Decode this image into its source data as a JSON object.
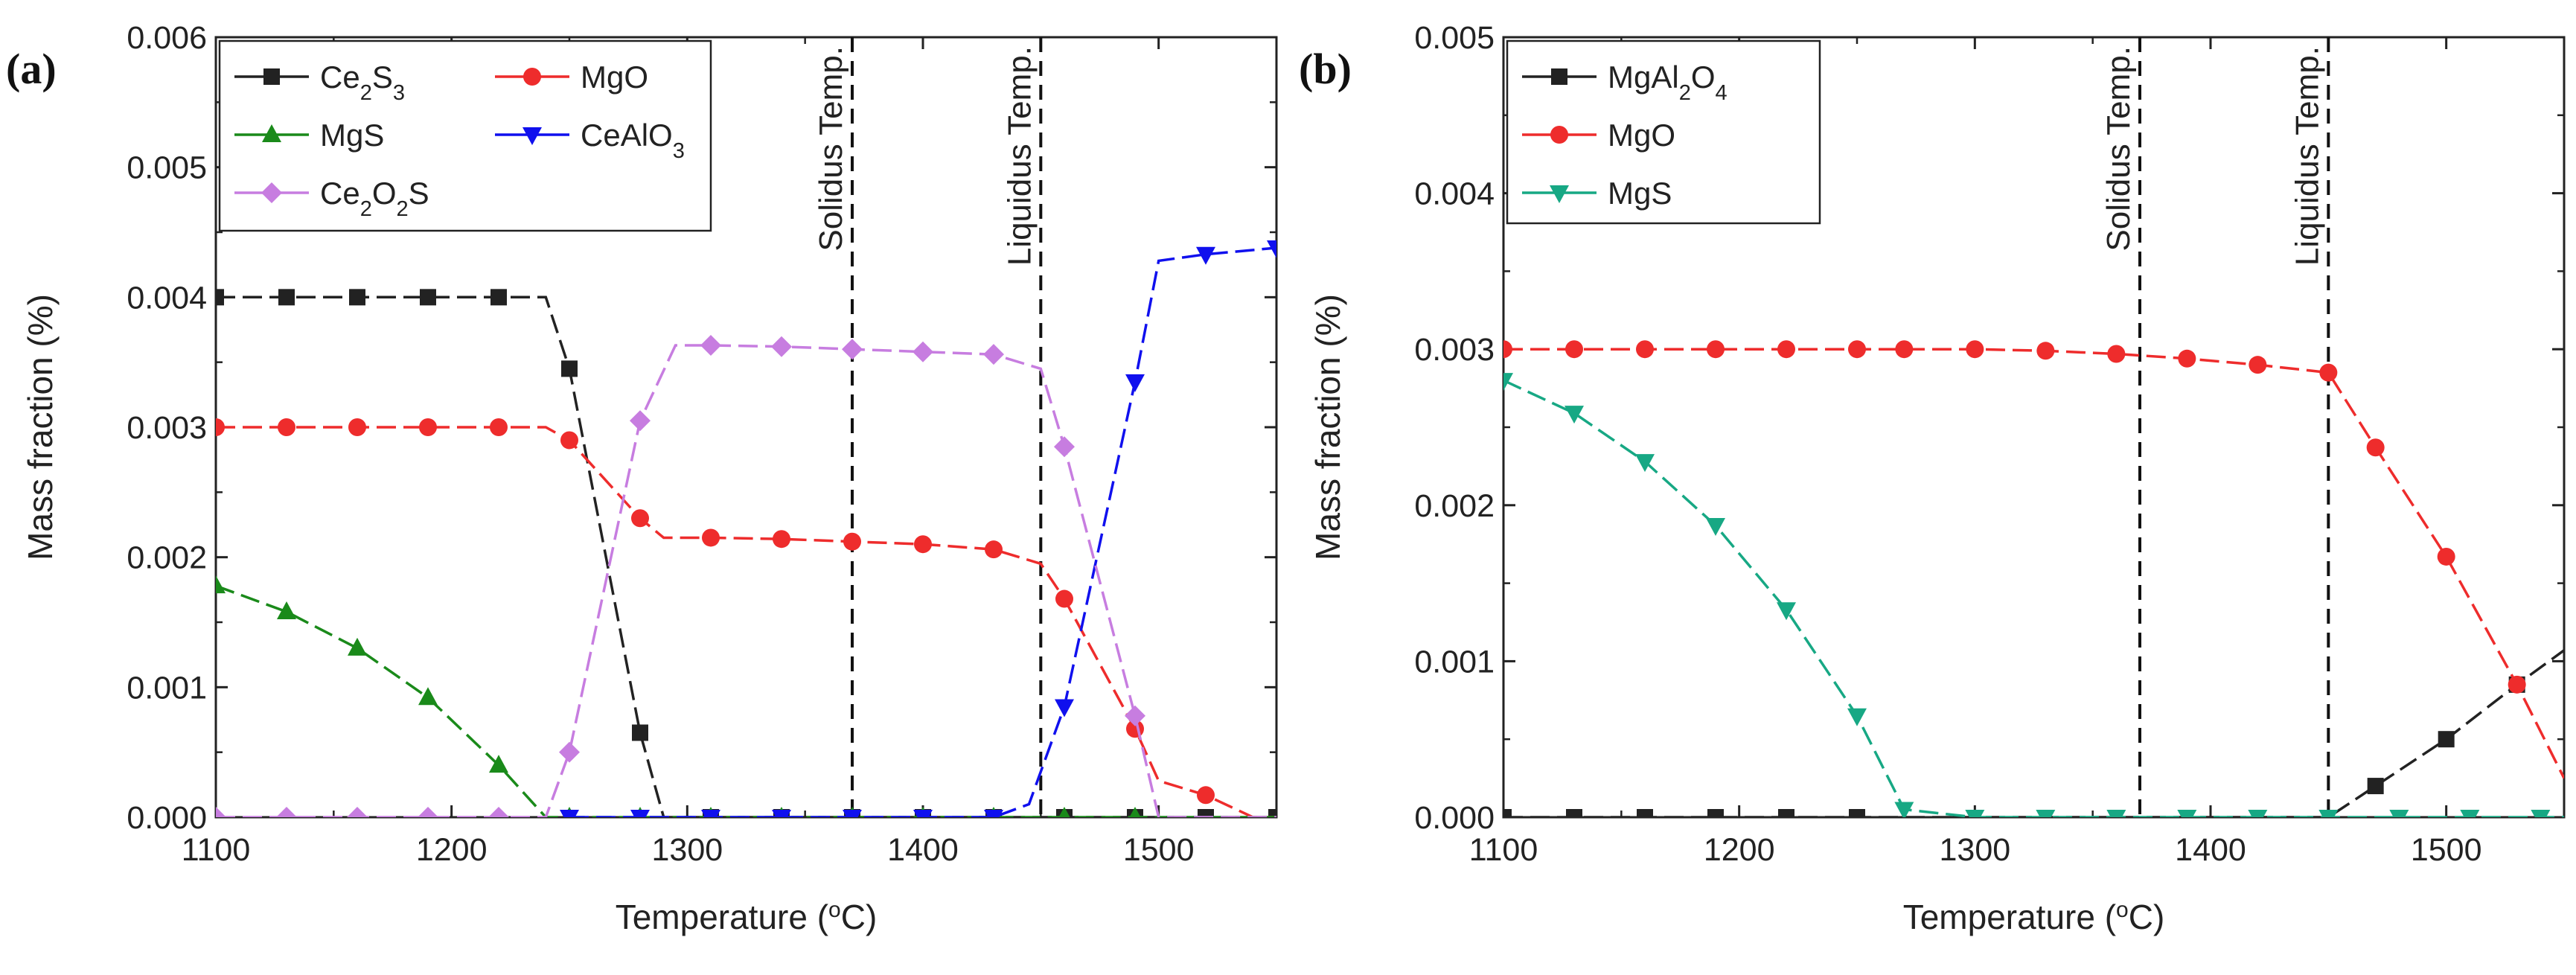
{
  "figure": {
    "panels": [
      {
        "label": "(a)",
        "xlabel_prefix": "Temperature (",
        "xlabel_sup": "o",
        "xlabel_suffix": "C)",
        "ylabel": "Mass fraction (%)",
        "yticks": [
          "0.000",
          "0.001",
          "0.002",
          "0.003",
          "0.004",
          "0.005",
          "0.006"
        ],
        "xticks": [
          "1100",
          "1200",
          "1300",
          "1400",
          "1500"
        ],
        "markers": [
          {
            "name": "Solidus Temp.",
            "value": 1370
          },
          {
            "name": "Liquidus Temp.",
            "value": 1450
          }
        ],
        "legend": [
          {
            "base": "Ce",
            "sub1": "2",
            "mid": "S",
            "sub2": "3",
            "tail": "",
            "color": "#222222",
            "marker": "square"
          },
          {
            "base": "MgO",
            "sub1": "",
            "mid": "",
            "sub2": "",
            "tail": "",
            "color": "#ee2c2c",
            "marker": "circle"
          },
          {
            "base": "MgS",
            "sub1": "",
            "mid": "",
            "sub2": "",
            "tail": "",
            "color": "#1a8a1a",
            "marker": "triangle-up"
          },
          {
            "base": "CeAlO",
            "sub1": "3",
            "mid": "",
            "sub2": "",
            "tail": "",
            "color": "#1010ee",
            "marker": "triangle-down"
          },
          {
            "base": "Ce",
            "sub1": "2",
            "mid": "O",
            "sub2": "2",
            "tail": "S",
            "color": "#c77de0",
            "marker": "diamond"
          }
        ]
      },
      {
        "label": "(b)",
        "xlabel_prefix": "Temperature (",
        "xlabel_sup": "o",
        "xlabel_suffix": "C)",
        "ylabel": "Mass fraction (%)",
        "yticks": [
          "0.000",
          "0.001",
          "0.002",
          "0.003",
          "0.004",
          "0.005"
        ],
        "xticks": [
          "1100",
          "1200",
          "1300",
          "1400",
          "1500"
        ],
        "markers": [
          {
            "name": "Solidus Temp.",
            "value": 1370
          },
          {
            "name": "Liquidus Temp.",
            "value": 1450
          }
        ],
        "legend": [
          {
            "base": "MgAl",
            "sub1": "2",
            "mid": "O",
            "sub2": "4",
            "tail": "",
            "color": "#222222",
            "marker": "square"
          },
          {
            "base": "MgO",
            "sub1": "",
            "mid": "",
            "sub2": "",
            "tail": "",
            "color": "#ee2c2c",
            "marker": "circle"
          },
          {
            "base": "MgS",
            "sub1": "",
            "mid": "",
            "sub2": "",
            "tail": "",
            "color": "#17a884",
            "marker": "triangle-down"
          }
        ]
      }
    ]
  },
  "chart_data": [
    {
      "type": "line",
      "title": "(a)",
      "xlabel": "Temperature (oC)",
      "ylabel": "Mass fraction (%)",
      "xlim": [
        1100,
        1550
      ],
      "ylim": [
        0,
        0.006
      ],
      "grid": false,
      "legend_position": "top-left",
      "series": [
        {
          "name": "Ce2S3",
          "color": "#222222",
          "marker": "square",
          "x": [
            1100,
            1130,
            1160,
            1190,
            1220,
            1240,
            1250,
            1280,
            1290,
            1310,
            1340,
            1370,
            1400,
            1430,
            1460,
            1490,
            1520,
            1550
          ],
          "y": [
            0.004,
            0.004,
            0.004,
            0.004,
            0.004,
            0.004,
            0.00345,
            0.00065,
            0,
            0,
            0,
            0,
            0,
            0,
            0,
            0,
            0,
            0
          ],
          "marked": [
            true,
            true,
            true,
            true,
            true,
            false,
            true,
            true,
            false,
            true,
            true,
            true,
            true,
            true,
            true,
            true,
            true,
            true
          ]
        },
        {
          "name": "MgO",
          "color": "#ee2c2c",
          "marker": "circle",
          "x": [
            1100,
            1130,
            1160,
            1190,
            1220,
            1240,
            1250,
            1280,
            1290,
            1310,
            1340,
            1370,
            1400,
            1430,
            1450,
            1460,
            1490,
            1500,
            1520,
            1540,
            1550
          ],
          "y": [
            0.003,
            0.003,
            0.003,
            0.003,
            0.003,
            0.003,
            0.0029,
            0.0023,
            0.00215,
            0.00215,
            0.00214,
            0.00212,
            0.0021,
            0.00206,
            0.00195,
            0.00168,
            0.00068,
            0.00028,
            0.00017,
            0,
            0
          ],
          "marked": [
            true,
            true,
            true,
            true,
            true,
            false,
            true,
            true,
            false,
            true,
            true,
            true,
            true,
            true,
            false,
            true,
            true,
            false,
            true,
            false,
            false
          ]
        },
        {
          "name": "MgS",
          "color": "#1a8a1a",
          "marker": "triangle-up",
          "x": [
            1100,
            1130,
            1160,
            1190,
            1220,
            1240,
            1250,
            1280,
            1310,
            1340,
            1370,
            1400,
            1430,
            1460,
            1490,
            1520,
            1550
          ],
          "y": [
            0.00178,
            0.00158,
            0.0013,
            0.00092,
            0.0004,
            0,
            0,
            0,
            0,
            0,
            0,
            0,
            0,
            0,
            0,
            0,
            0
          ],
          "marked": [
            true,
            true,
            true,
            true,
            true,
            false,
            true,
            true,
            true,
            true,
            true,
            true,
            true,
            true,
            true,
            false,
            false
          ]
        },
        {
          "name": "CeAlO3",
          "color": "#1010ee",
          "marker": "triangle-down",
          "x": [
            1250,
            1280,
            1310,
            1340,
            1370,
            1400,
            1430,
            1445,
            1460,
            1490,
            1500,
            1520,
            1550
          ],
          "y": [
            0,
            0,
            0,
            0,
            0,
            0,
            0,
            0.0001,
            0.00085,
            0.00335,
            0.00428,
            0.00433,
            0.00438
          ],
          "marked": [
            true,
            true,
            true,
            true,
            true,
            true,
            true,
            false,
            true,
            true,
            false,
            true,
            true
          ]
        },
        {
          "name": "Ce2O2S",
          "color": "#c77de0",
          "marker": "diamond",
          "x": [
            1100,
            1130,
            1160,
            1190,
            1220,
            1240,
            1250,
            1280,
            1295,
            1310,
            1340,
            1370,
            1400,
            1430,
            1450,
            1460,
            1490,
            1500,
            1520,
            1550
          ],
          "y": [
            0,
            0,
            0,
            0,
            0,
            0,
            0.0005,
            0.00305,
            0.00363,
            0.00363,
            0.00362,
            0.0036,
            0.00358,
            0.00356,
            0.00345,
            0.00285,
            0.00078,
            0,
            0,
            0
          ],
          "marked": [
            true,
            true,
            true,
            true,
            true,
            false,
            true,
            true,
            false,
            true,
            true,
            true,
            true,
            true,
            false,
            true,
            true,
            false,
            false,
            false
          ]
        }
      ],
      "annotations": [
        "Solidus Temp. at 1370",
        "Liquidus Temp. at 1450"
      ]
    },
    {
      "type": "line",
      "title": "(b)",
      "xlabel": "Temperature (oC)",
      "ylabel": "Mass fraction (%)",
      "xlim": [
        1100,
        1550
      ],
      "ylim": [
        0,
        0.005
      ],
      "grid": false,
      "legend_position": "top-left",
      "series": [
        {
          "name": "MgAl2O4",
          "color": "#222222",
          "marker": "square",
          "x": [
            1100,
            1130,
            1160,
            1190,
            1220,
            1250,
            1280,
            1310,
            1340,
            1370,
            1400,
            1430,
            1450,
            1470,
            1500,
            1530,
            1550
          ],
          "y": [
            0,
            0,
            0,
            0,
            0,
            0,
            0,
            0,
            0,
            0,
            0,
            0,
            0,
            0.0002,
            0.0005,
            0.00085,
            0.00107
          ],
          "marked": [
            true,
            true,
            true,
            true,
            true,
            true,
            false,
            false,
            false,
            false,
            false,
            false,
            false,
            true,
            true,
            true,
            false
          ]
        },
        {
          "name": "MgO",
          "color": "#ee2c2c",
          "marker": "circle",
          "x": [
            1100,
            1130,
            1160,
            1190,
            1220,
            1250,
            1270,
            1300,
            1330,
            1360,
            1390,
            1420,
            1450,
            1470,
            1500,
            1530,
            1550
          ],
          "y": [
            0.003,
            0.003,
            0.003,
            0.003,
            0.003,
            0.003,
            0.003,
            0.003,
            0.00299,
            0.00297,
            0.00294,
            0.0029,
            0.00285,
            0.00237,
            0.00167,
            0.00085,
            0.00025
          ],
          "marked": [
            true,
            true,
            true,
            true,
            true,
            true,
            true,
            true,
            true,
            true,
            true,
            true,
            true,
            true,
            true,
            true,
            false
          ]
        },
        {
          "name": "MgS",
          "color": "#17a884",
          "marker": "triangle-down",
          "x": [
            1100,
            1130,
            1160,
            1190,
            1220,
            1250,
            1270,
            1300,
            1330,
            1360,
            1390,
            1420,
            1450,
            1480,
            1510,
            1540,
            1550
          ],
          "y": [
            0.0028,
            0.00259,
            0.00228,
            0.00187,
            0.00133,
            0.00065,
            5e-05,
            0,
            0,
            0,
            0,
            0,
            0,
            0,
            0,
            0,
            0
          ],
          "marked": [
            true,
            true,
            true,
            true,
            true,
            true,
            true,
            true,
            true,
            true,
            true,
            true,
            true,
            true,
            true,
            true,
            false
          ]
        }
      ],
      "annotations": [
        "Solidus Temp. at 1370",
        "Liquidus Temp. at 1450"
      ]
    }
  ]
}
